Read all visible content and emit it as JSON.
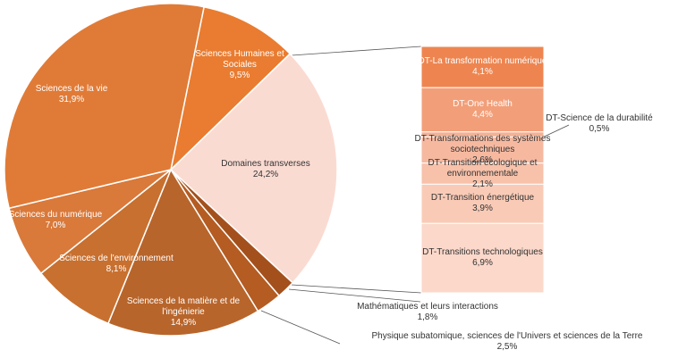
{
  "chart_data": [
    {
      "type": "pie",
      "categories": [
        "Sciences Humaines et Sociales",
        "Domaines transverses",
        "Mathématiques et leurs interactions",
        "Physique subatomique, sciences de l'Univers et sciences de la Terre",
        "Sciences de la matière et de l'ingénierie",
        "Sciences de l'environnement",
        "Sciences du numérique",
        "Sciences de la vie"
      ],
      "values": [
        9.5,
        24.2,
        1.8,
        2.5,
        14.9,
        8.1,
        7.0,
        31.9
      ],
      "value_labels": [
        "9,5%",
        "24,2%",
        "1,8%",
        "2,5%",
        "14,9%",
        "8,1%",
        "7,0%",
        "31,9%"
      ],
      "colors": [
        "#e97c30",
        "#fadbd2",
        "#a4501c",
        "#b45c22",
        "#b8652b",
        "#c8702f",
        "#d9793a",
        "#e07b37"
      ]
    },
    {
      "type": "bar",
      "categories": [
        "DT-La transformation numérique",
        "DT-One Health",
        "DT-Science de la durabilité",
        "DT-Transformations des systèmes sociotechniques",
        "DT-Transition écologique et environnementale",
        "DT-Transition énergétique",
        "DT-Transitions technologiques"
      ],
      "values": [
        4.1,
        4.4,
        0.5,
        2.6,
        2.1,
        3.9,
        6.9
      ],
      "value_labels": [
        "4,1%",
        "4,4%",
        "0,5%",
        "2,6%",
        "2,1%",
        "3,9%",
        "6,9%"
      ],
      "colors": [
        "#ee8550",
        "#f29f79",
        "#f4b194",
        "#f6b9a0",
        "#f7c1aa",
        "#f9cbb7",
        "#fbd8ca"
      ]
    }
  ]
}
